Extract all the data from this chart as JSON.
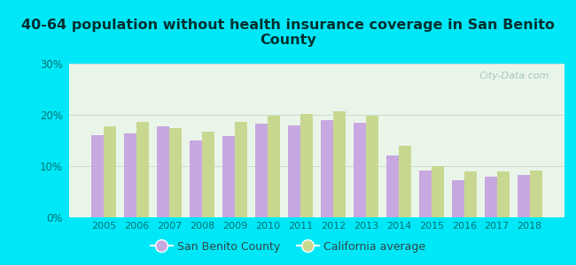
{
  "title": "40-64 population without health insurance coverage in San Benito\nCounty",
  "years": [
    2005,
    2006,
    2007,
    2008,
    2009,
    2010,
    2011,
    2012,
    2013,
    2014,
    2015,
    2016,
    2017,
    2018
  ],
  "san_benito": [
    16.0,
    16.3,
    17.7,
    15.0,
    15.8,
    18.3,
    18.0,
    19.0,
    18.4,
    12.0,
    9.2,
    7.2,
    7.9,
    8.2
  ],
  "california": [
    17.8,
    18.7,
    17.5,
    16.7,
    18.7,
    19.8,
    20.2,
    20.7,
    19.8,
    14.0,
    10.0,
    8.9,
    9.0,
    9.1
  ],
  "bar_color_sb": "#c8a8e0",
  "bar_color_ca": "#c8d890",
  "background_outer": "#00e8f8",
  "background_plot": "#eaf5ea",
  "ylim": [
    0,
    30
  ],
  "yticks": [
    0,
    10,
    20,
    30
  ],
  "ytick_labels": [
    "0%",
    "10%",
    "20%",
    "30%"
  ],
  "legend_sb": "San Benito County",
  "legend_ca": "California average",
  "watermark": "City-Data.com",
  "title_color": "#003030",
  "tick_color": "#007070"
}
